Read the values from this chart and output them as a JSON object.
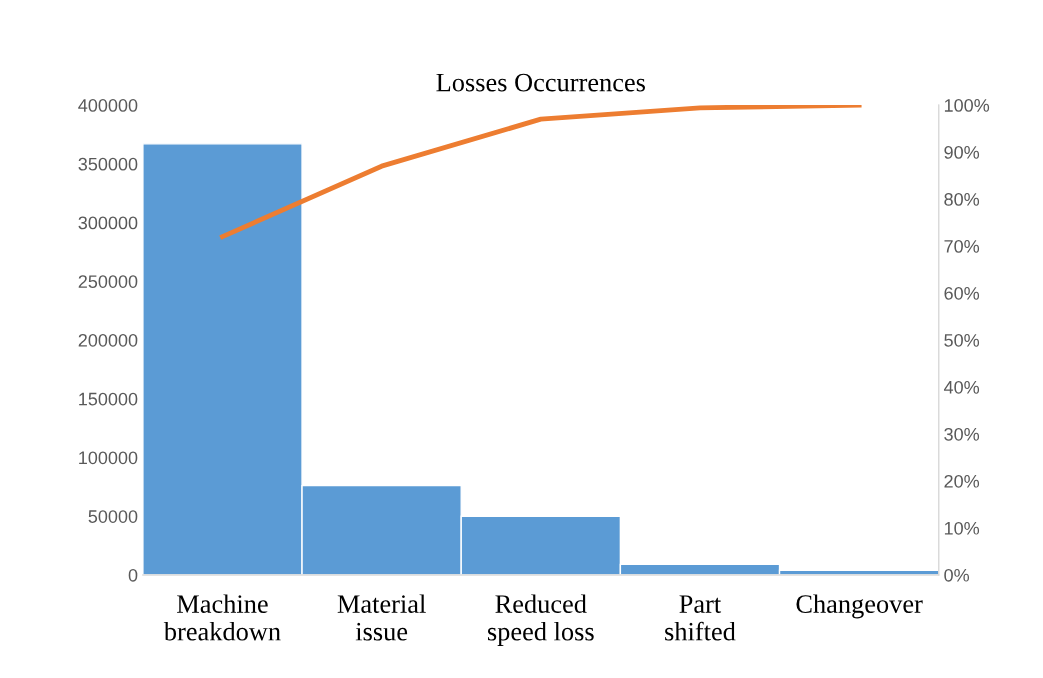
{
  "chart_data": {
    "type": "bar",
    "title": "Losses Occurrences",
    "categories": [
      "Machine\nbreakdown",
      "Material\nissue",
      "Reduced\nspeed loss",
      "Part\nshifted",
      "Changeover"
    ],
    "series": [
      {
        "color": "#5b9bd5",
        "values": [
          367000,
          76000,
          50000,
          9000,
          4000
        ]
      },
      {
        "type": "line",
        "axis": "y2",
        "color": "#ed7d31",
        "values": [
          72,
          87,
          97,
          99.4,
          100
        ]
      }
    ],
    "ylim": [
      0,
      400000
    ],
    "yticks": [
      0,
      50000,
      100000,
      150000,
      200000,
      250000,
      300000,
      350000,
      400000
    ],
    "y2lim": [
      0,
      100
    ],
    "y2ticks": [
      {
        "value": 0,
        "label": "0%"
      },
      {
        "value": 10,
        "label": "10%"
      },
      {
        "value": 20,
        "label": "20%"
      },
      {
        "value": 30,
        "label": "30%"
      },
      {
        "value": 40,
        "label": "40%"
      },
      {
        "value": 50,
        "label": "50%"
      },
      {
        "value": 60,
        "label": "60%"
      },
      {
        "value": 70,
        "label": "70%"
      },
      {
        "value": 80,
        "label": "80%"
      },
      {
        "value": 90,
        "label": "90%"
      },
      {
        "value": 100,
        "label": "100%"
      }
    ],
    "grid": false,
    "legend": false,
    "marker": "none",
    "line_style": "solid"
  }
}
